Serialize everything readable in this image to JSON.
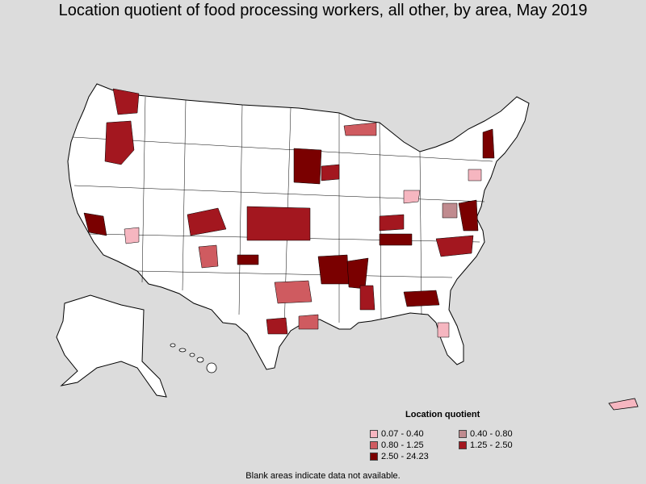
{
  "title": "Location quotient of food processing workers, all other, by area, May 2019",
  "legend": {
    "title": "Location quotient",
    "items": [
      {
        "label": "0.07 - 0.40",
        "color": "#f6b6c0"
      },
      {
        "label": "0.40 - 0.80",
        "color": "#c08b8f"
      },
      {
        "label": "0.80 - 1.25",
        "color": "#cf5b60"
      },
      {
        "label": "1.25 - 2.50",
        "color": "#a3171f"
      },
      {
        "label": "2.50 - 24.23",
        "color": "#7a0000"
      }
    ]
  },
  "footnote": "Blank areas indicate data not available.",
  "colors": {
    "background": "#dcdcdc",
    "land": "#ffffff",
    "border": "#000000"
  }
}
